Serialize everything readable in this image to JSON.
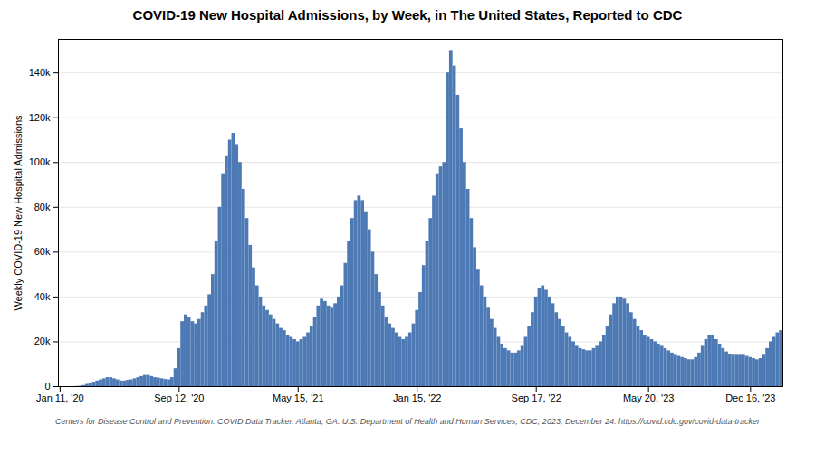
{
  "chart_data": {
    "type": "bar",
    "title": "COVID-19 New Hospital Admissions, by Week, in The United States, Reported to CDC",
    "ylabel": "Weekly COVID-19 New Hospital Admissions",
    "footnote": "Centers for Disease Control and Prevention. COVID Data Tracker. Atlanta, GA: U.S. Department of Health and Human Services, CDC; 2023, December 24. https://covid.cdc.gov/covid-data-tracker",
    "color": "#4d7ab5",
    "grid": true,
    "ylim": [
      0,
      155000
    ],
    "yticks": [
      0,
      {
        "value": 20000,
        "label": "20k"
      },
      {
        "value": 40000,
        "label": "40k"
      },
      {
        "value": 60000,
        "label": "60k"
      },
      {
        "value": 80000,
        "label": "80k"
      },
      {
        "value": 100000,
        "label": "100k"
      },
      {
        "value": 120000,
        "label": "120k"
      },
      {
        "value": 140000,
        "label": "140k"
      }
    ],
    "categories": [
      "Jan 11, '20",
      null,
      null,
      null,
      null,
      null,
      null,
      null,
      null,
      null,
      null,
      null,
      null,
      null,
      null,
      null,
      null,
      null,
      null,
      null,
      null,
      null,
      null,
      null,
      null,
      null,
      null,
      null,
      null,
      null,
      null,
      null,
      null,
      null,
      null,
      "Sep 12, '20",
      null,
      null,
      null,
      null,
      null,
      null,
      null,
      null,
      null,
      null,
      null,
      null,
      null,
      null,
      null,
      null,
      null,
      null,
      null,
      null,
      null,
      null,
      null,
      null,
      null,
      null,
      null,
      null,
      null,
      null,
      null,
      null,
      null,
      null,
      "May 15, '21",
      null,
      null,
      null,
      null,
      null,
      null,
      null,
      null,
      null,
      null,
      null,
      null,
      null,
      null,
      null,
      null,
      null,
      null,
      null,
      null,
      null,
      null,
      null,
      null,
      null,
      null,
      null,
      null,
      null,
      null,
      null,
      null,
      null,
      null,
      "Jan 15, '22",
      null,
      null,
      null,
      null,
      null,
      null,
      null,
      null,
      null,
      null,
      null,
      null,
      null,
      null,
      null,
      null,
      null,
      null,
      null,
      null,
      null,
      null,
      null,
      null,
      null,
      null,
      null,
      null,
      null,
      null,
      null,
      null,
      null,
      null,
      "Sep 17, '22",
      null,
      null,
      null,
      null,
      null,
      null,
      null,
      null,
      null,
      null,
      null,
      null,
      null,
      null,
      null,
      null,
      null,
      null,
      null,
      null,
      null,
      null,
      null,
      null,
      null,
      null,
      null,
      null,
      null,
      null,
      null,
      null,
      "May 20, '23",
      null,
      null,
      null,
      null,
      null,
      null,
      null,
      null,
      null,
      null,
      null,
      null,
      null,
      null,
      null,
      null,
      null,
      null,
      null,
      null,
      null,
      null,
      null,
      null,
      null,
      null,
      null,
      null,
      null,
      "Dec 16, '23",
      null,
      null,
      null,
      null,
      null,
      null,
      null,
      null,
      null
    ],
    "values": [
      0,
      0,
      0,
      0,
      0,
      100,
      200,
      500,
      1000,
      1500,
      2000,
      2500,
      3000,
      3500,
      4000,
      4000,
      3500,
      3000,
      2500,
      2500,
      2800,
      3000,
      3500,
      4000,
      4500,
      5000,
      5000,
      4500,
      4000,
      3800,
      3500,
      3200,
      3000,
      4000,
      8000,
      17000,
      29000,
      32000,
      31000,
      29000,
      28000,
      30000,
      33000,
      36000,
      41000,
      50000,
      65000,
      80000,
      95000,
      103000,
      110000,
      113000,
      108000,
      100000,
      88000,
      75000,
      63000,
      53000,
      45000,
      40000,
      36000,
      34000,
      32000,
      30000,
      28000,
      26000,
      25000,
      23000,
      22000,
      21000,
      20000,
      21000,
      22000,
      24000,
      27000,
      31000,
      36000,
      39000,
      38000,
      36000,
      35000,
      37000,
      40000,
      45000,
      55000,
      65000,
      75000,
      83000,
      85000,
      83000,
      78000,
      70000,
      60000,
      50000,
      42000,
      36000,
      31000,
      28000,
      26000,
      24000,
      22000,
      21000,
      22000,
      24000,
      28000,
      34000,
      42000,
      54000,
      65000,
      75000,
      85000,
      95000,
      98000,
      100000,
      140000,
      150000,
      143000,
      130000,
      115000,
      100000,
      88000,
      75000,
      62000,
      52000,
      45000,
      40000,
      35000,
      30000,
      26000,
      22000,
      19000,
      17000,
      16000,
      15000,
      15000,
      16000,
      18000,
      22000,
      27000,
      33000,
      40000,
      44000,
      45000,
      43000,
      40000,
      37000,
      33000,
      30000,
      27000,
      24000,
      22000,
      20000,
      18000,
      17000,
      16500,
      16000,
      16000,
      17000,
      18000,
      20000,
      23000,
      27000,
      32000,
      37000,
      40000,
      40000,
      39000,
      37000,
      33000,
      30000,
      27000,
      25000,
      23000,
      22000,
      21000,
      20000,
      19000,
      18000,
      17000,
      16000,
      15000,
      14000,
      13500,
      13000,
      12500,
      12000,
      12000,
      13000,
      15000,
      18000,
      21000,
      23000,
      23000,
      21000,
      19000,
      17000,
      15500,
      14500,
      14000,
      14000,
      14000,
      14000,
      13500,
      13000,
      12500,
      12000,
      12500,
      14000,
      17000,
      20000,
      22000,
      24000,
      25000
    ]
  }
}
